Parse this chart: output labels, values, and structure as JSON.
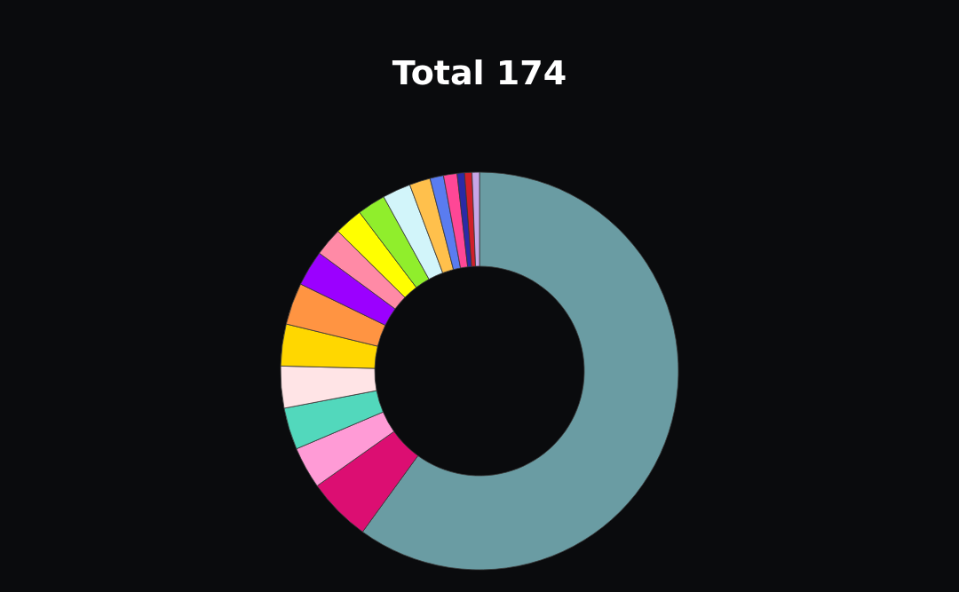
{
  "chart_data": {
    "type": "donut",
    "title": "Total 174",
    "categories": [
      null,
      null,
      null,
      null,
      null,
      null,
      null,
      null,
      null,
      null,
      null,
      null,
      null,
      null,
      null,
      null,
      null,
      null
    ],
    "values": [
      60.0,
      5.2,
      3.4,
      3.4,
      3.4,
      3.4,
      3.4,
      2.9,
      2.3,
      2.3,
      2.3,
      2.3,
      1.7,
      1.1,
      1.1,
      0.6,
      0.6,
      0.6
    ],
    "colors": [
      "#6a9ca3",
      "#dc0e72",
      "#ff9bd6",
      "#52d8bc",
      "#ffe4e6",
      "#ffd700",
      "#ff9442",
      "#9b00ff",
      "#ff8aa6",
      "#ffff00",
      "#90ee2c",
      "#d2f5fa",
      "#ffc04c",
      "#5a7cf0",
      "#ff4796",
      "#2a2aa6",
      "#d0202a",
      "#c8a6e6"
    ]
  }
}
